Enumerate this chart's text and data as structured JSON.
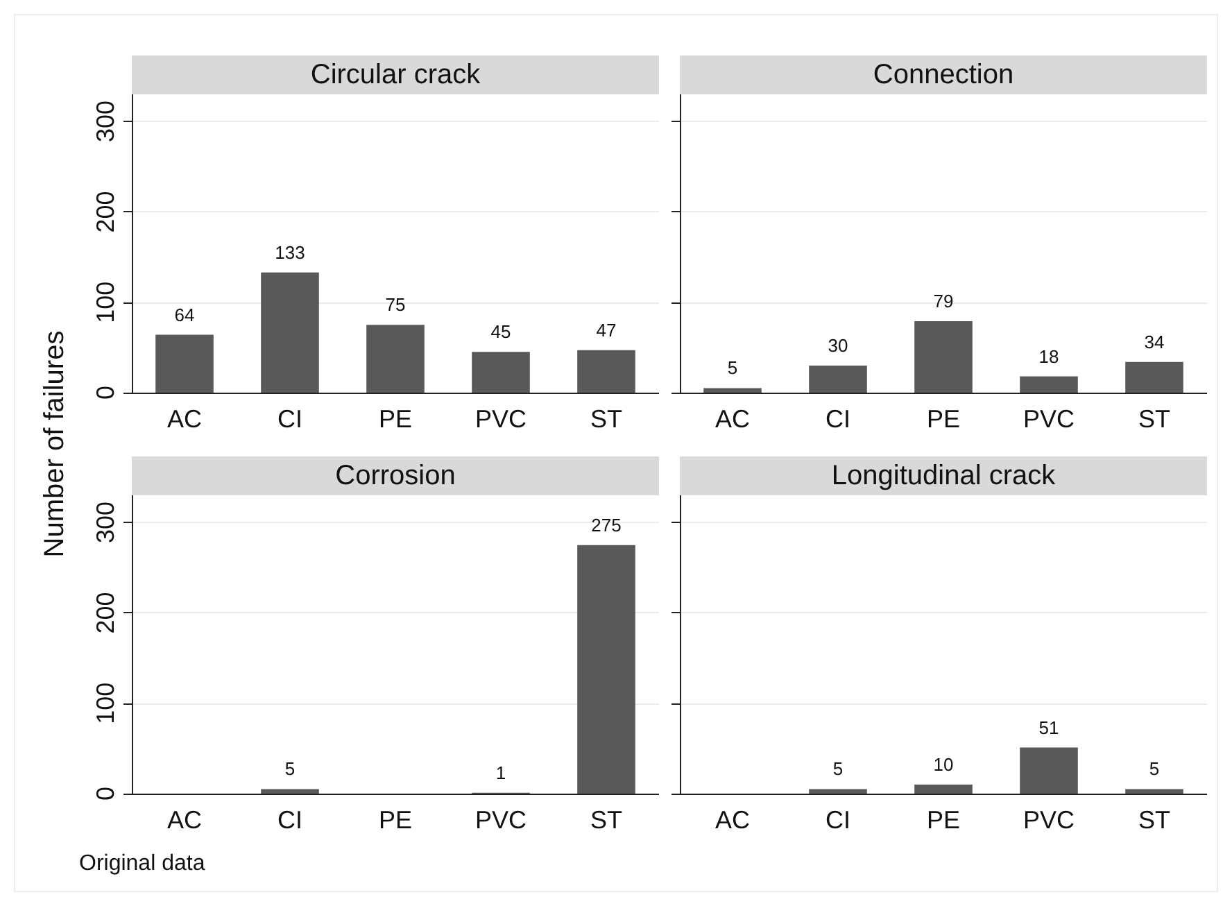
{
  "chart_data": [
    {
      "type": "bar",
      "title": "Circular crack",
      "ylabel": "Number of failures",
      "categories": [
        "AC",
        "CI",
        "PE",
        "PVC",
        "ST"
      ],
      "values": [
        64,
        133,
        75,
        45,
        47
      ],
      "color": "#595959",
      "ylim": [
        0,
        330
      ],
      "yticks": [
        0,
        100,
        200,
        300
      ],
      "grid": "y",
      "data_labels": true
    },
    {
      "type": "bar",
      "title": "Connection",
      "categories": [
        "AC",
        "CI",
        "PE",
        "PVC",
        "ST"
      ],
      "values": [
        5,
        30,
        79,
        18,
        34
      ],
      "color": "#595959",
      "ylim": [
        0,
        330
      ],
      "yticks": [
        0,
        100,
        200,
        300
      ],
      "grid": "y",
      "data_labels": true,
      "tick_labels": "x"
    },
    {
      "type": "bar",
      "title": "Corrosion",
      "categories": [
        "AC",
        "CI",
        "PE",
        "PVC",
        "ST"
      ],
      "values": [
        null,
        5,
        null,
        1,
        275
      ],
      "color": "#595959",
      "ylim": [
        0,
        330
      ],
      "yticks": [
        0,
        100,
        200,
        300
      ],
      "grid": "y",
      "data_labels": true,
      "annotations": [
        "Original data"
      ]
    },
    {
      "type": "bar",
      "title": "Longitudinal crack",
      "categories": [
        "AC",
        "CI",
        "PE",
        "PVC",
        "ST"
      ],
      "values": [
        null,
        5,
        10,
        51,
        5
      ],
      "color": "#595959",
      "ylim": [
        0,
        330
      ],
      "yticks": [
        0,
        100,
        200,
        300
      ],
      "grid": "y",
      "data_labels": true,
      "tick_labels": "x"
    }
  ]
}
